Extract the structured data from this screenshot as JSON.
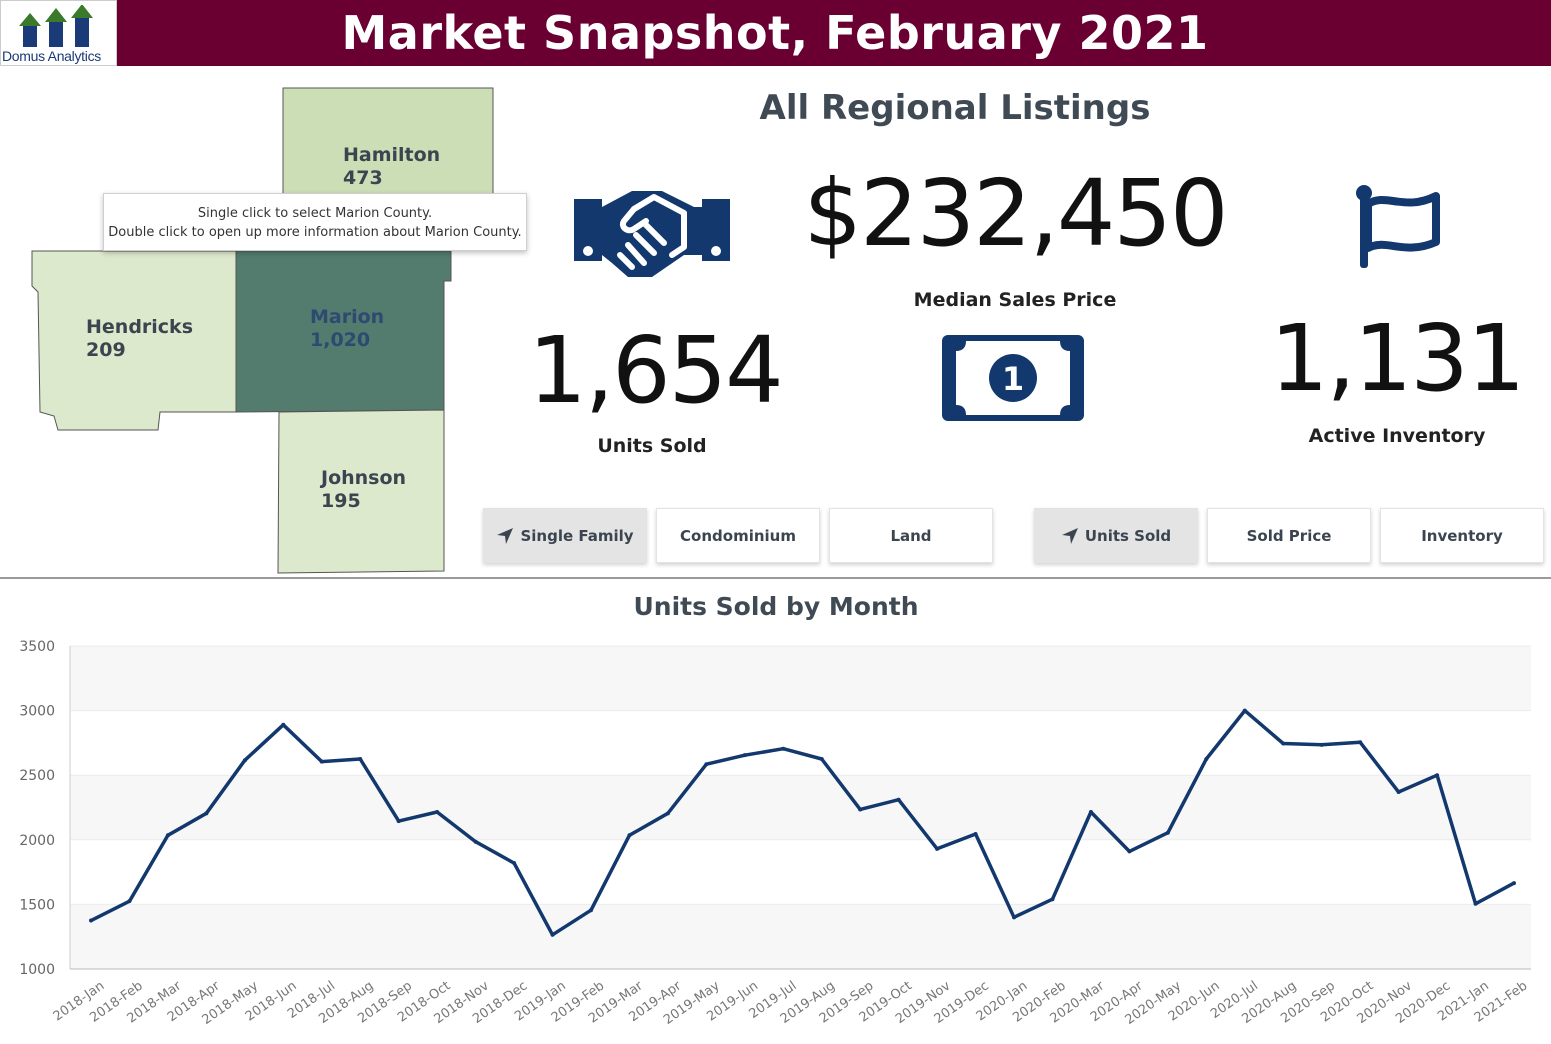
{
  "header": {
    "logo_text": "Domus Analytics",
    "title": "Market Snapshot, February 2021",
    "background_color": "#6a0032"
  },
  "map": {
    "counties": [
      {
        "name": "Hamilton",
        "value": "473",
        "selected": false
      },
      {
        "name": "Hendricks",
        "value": "209",
        "selected": false
      },
      {
        "name": "Marion",
        "value": "1,020",
        "selected": true
      },
      {
        "name": "Johnson",
        "value": "195",
        "selected": false
      }
    ],
    "tooltip": {
      "line1": "Single click to select Marion County.",
      "line2": "Double click to open up more information about Marion County."
    }
  },
  "kpis": {
    "region_title": "All Regional Listings",
    "median_price": {
      "value": "$232,450",
      "label": "Median Sales Price",
      "icon": "dollar-bill-icon"
    },
    "units_sold": {
      "value": "1,654",
      "label": "Units Sold",
      "icon": "handshake-icon"
    },
    "active_inventory": {
      "value": "1,131",
      "label": "Active Inventory",
      "icon": "flag-icon"
    },
    "icon_color": "#12386e"
  },
  "property_type_buttons": [
    {
      "label": "Single Family",
      "active": true
    },
    {
      "label": "Condominium",
      "active": false
    },
    {
      "label": "Land",
      "active": false
    }
  ],
  "metric_buttons": [
    {
      "label": "Units Sold",
      "active": true
    },
    {
      "label": "Sold Price",
      "active": false
    },
    {
      "label": "Inventory",
      "active": false
    }
  ],
  "chart_data": {
    "type": "line",
    "title": "Units Sold by Month",
    "xlabel": "",
    "ylabel": "",
    "ylim": [
      1000,
      3500
    ],
    "yticks": [
      1000,
      1500,
      2000,
      2500,
      3000,
      3500
    ],
    "grid": true,
    "line_color": "#12386e",
    "categories": [
      "2018-Jan",
      "2018-Feb",
      "2018-Mar",
      "2018-Apr",
      "2018-May",
      "2018-Jun",
      "2018-Jul",
      "2018-Aug",
      "2018-Sep",
      "2018-Oct",
      "2018-Nov",
      "2018-Dec",
      "2019-Jan",
      "2019-Feb",
      "2019-Mar",
      "2019-Apr",
      "2019-May",
      "2019-Jun",
      "2019-Jul",
      "2019-Aug",
      "2019-Sep",
      "2019-Oct",
      "2019-Nov",
      "2019-Dec",
      "2020-Jan",
      "2020-Feb",
      "2020-Mar",
      "2020-Apr",
      "2020-May",
      "2020-Jun",
      "2020-Jul",
      "2020-Aug",
      "2020-Sep",
      "2020-Oct",
      "2020-Nov",
      "2020-Dec",
      "2021-Jan",
      "2021-Feb"
    ],
    "values": [
      1375,
      1525,
      2035,
      2205,
      2615,
      2890,
      2605,
      2625,
      2145,
      2215,
      1985,
      1820,
      1265,
      1455,
      2035,
      2205,
      2585,
      2655,
      2705,
      2625,
      2235,
      2310,
      1930,
      2045,
      1400,
      1540,
      2215,
      1910,
      2055,
      2625,
      3000,
      2745,
      2735,
      2755,
      2370,
      2500,
      1505,
      1665
    ]
  }
}
